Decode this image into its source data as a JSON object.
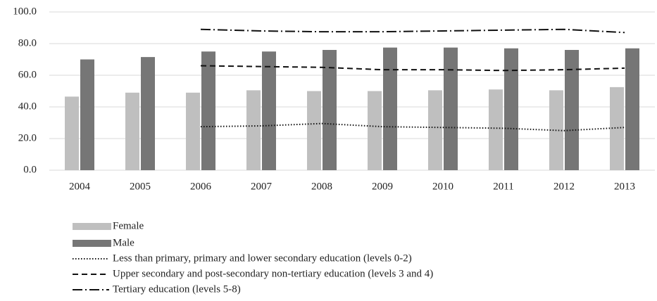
{
  "chart_data": {
    "type": "bar",
    "categories": [
      "2004",
      "2005",
      "2006",
      "2007",
      "2008",
      "2009",
      "2010",
      "2011",
      "2012",
      "2013"
    ],
    "series": [
      {
        "name": "Female",
        "kind": "bar",
        "color": "#bfbfbf",
        "values": [
          46.5,
          49,
          49,
          50.5,
          50,
          50,
          50.5,
          51,
          50.5,
          52.5
        ]
      },
      {
        "name": "Male",
        "kind": "bar",
        "color": "#767676",
        "values": [
          70,
          71.5,
          75,
          75,
          76,
          77.5,
          77.5,
          77,
          76,
          77
        ]
      },
      {
        "name": "Less than primary, primary and lower secondary education (levels 0-2)",
        "kind": "line",
        "dash": "1.5,2.5",
        "color": "#111111",
        "values": [
          null,
          null,
          27.5,
          28,
          29.5,
          27.5,
          27,
          26.5,
          25,
          27
        ]
      },
      {
        "name": "Upper secondary and post-secondary non-tertiary education (levels 3 and 4)",
        "kind": "line",
        "dash": "8,5",
        "color": "#111111",
        "values": [
          null,
          null,
          66,
          65.5,
          65,
          63.5,
          63.5,
          63,
          63.5,
          64.5
        ]
      },
      {
        "name": "Tertiary education (levels 5-8)",
        "kind": "line",
        "dash": "14,4,2,4",
        "color": "#111111",
        "values": [
          null,
          null,
          89,
          88,
          87.5,
          87.5,
          88,
          88.5,
          89,
          87
        ]
      }
    ],
    "ylim": [
      0,
      100
    ],
    "yticks": [
      {
        "value": 0,
        "label": "0.0"
      },
      {
        "value": 20,
        "label": "20.0"
      },
      {
        "value": 40,
        "label": "40.0"
      },
      {
        "value": 60,
        "label": "60.0"
      },
      {
        "value": 80,
        "label": "80.0"
      },
      {
        "value": 100,
        "label": "100.0"
      }
    ],
    "grid": true
  }
}
